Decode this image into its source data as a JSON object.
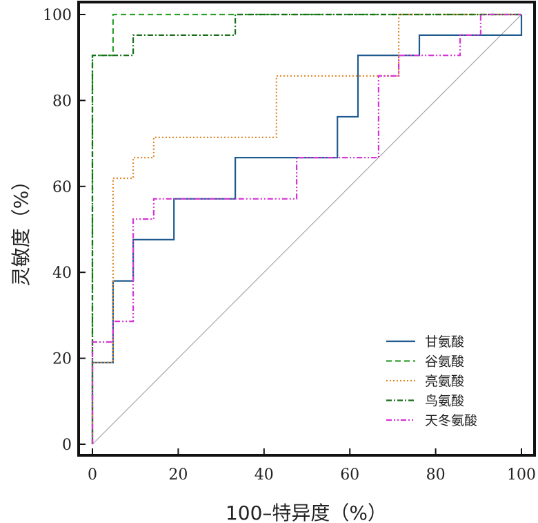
{
  "chart_data": {
    "type": "line",
    "xlabel": "100–特异度（%）",
    "ylabel": "灵敏度（%）",
    "xlim": [
      0,
      100
    ],
    "ylim": [
      0,
      100
    ],
    "xticks": [
      0,
      20,
      40,
      60,
      80,
      100
    ],
    "yticks": [
      0,
      20,
      40,
      60,
      80,
      100
    ],
    "grid": false,
    "legend_position": "lower-right",
    "series": [
      {
        "name": "甘氨酸",
        "color": "#1f5a8f",
        "dash": "solid",
        "points": [
          [
            0,
            0
          ],
          [
            0,
            19
          ],
          [
            4.8,
            19
          ],
          [
            4.8,
            38
          ],
          [
            9.5,
            38
          ],
          [
            9.5,
            47.6
          ],
          [
            19,
            47.6
          ],
          [
            19,
            57.1
          ],
          [
            33.3,
            57.1
          ],
          [
            33.3,
            66.7
          ],
          [
            57.1,
            66.7
          ],
          [
            57.1,
            76.2
          ],
          [
            61.9,
            76.2
          ],
          [
            61.9,
            90.5
          ],
          [
            76.2,
            90.5
          ],
          [
            76.2,
            95.2
          ],
          [
            100,
            95.2
          ],
          [
            100,
            100
          ]
        ]
      },
      {
        "name": "谷氨酸",
        "color": "#2ca02c",
        "dash": "dashed",
        "points": [
          [
            0,
            0
          ],
          [
            0,
            90.5
          ],
          [
            4.8,
            90.5
          ],
          [
            4.8,
            100
          ],
          [
            100,
            100
          ]
        ]
      },
      {
        "name": "亮氨酸",
        "color": "#e0882a",
        "dash": "dotted",
        "points": [
          [
            0,
            0
          ],
          [
            0,
            19
          ],
          [
            4.8,
            19
          ],
          [
            4.8,
            61.9
          ],
          [
            9.5,
            61.9
          ],
          [
            9.5,
            66.7
          ],
          [
            14.3,
            66.7
          ],
          [
            14.3,
            71.4
          ],
          [
            42.9,
            71.4
          ],
          [
            42.9,
            85.7
          ],
          [
            71.4,
            85.7
          ],
          [
            71.4,
            100
          ],
          [
            100,
            100
          ]
        ]
      },
      {
        "name": "鸟氨酸",
        "color": "#1a6e1a",
        "dash": "dashdot",
        "points": [
          [
            0,
            0
          ],
          [
            0,
            90.5
          ],
          [
            9.5,
            90.5
          ],
          [
            9.5,
            95.2
          ],
          [
            33.3,
            95.2
          ],
          [
            33.3,
            100
          ],
          [
            100,
            100
          ]
        ]
      },
      {
        "name": "天冬氨酸",
        "color": "#d633d6",
        "dash": "dashdotdot",
        "points": [
          [
            0,
            0
          ],
          [
            0,
            23.8
          ],
          [
            4.8,
            23.8
          ],
          [
            4.8,
            28.6
          ],
          [
            9.5,
            28.6
          ],
          [
            9.5,
            52.4
          ],
          [
            14.3,
            52.4
          ],
          [
            14.3,
            57.1
          ],
          [
            47.6,
            57.1
          ],
          [
            47.6,
            66.7
          ],
          [
            66.7,
            66.7
          ],
          [
            66.7,
            85.7
          ],
          [
            71.4,
            85.7
          ],
          [
            71.4,
            90.5
          ],
          [
            85.7,
            90.5
          ],
          [
            85.7,
            95.2
          ],
          [
            90.5,
            95.2
          ],
          [
            90.5,
            100
          ],
          [
            100,
            100
          ]
        ]
      }
    ],
    "reference_line": {
      "color": "#999999",
      "points": [
        [
          0,
          0
        ],
        [
          100,
          100
        ]
      ]
    }
  }
}
